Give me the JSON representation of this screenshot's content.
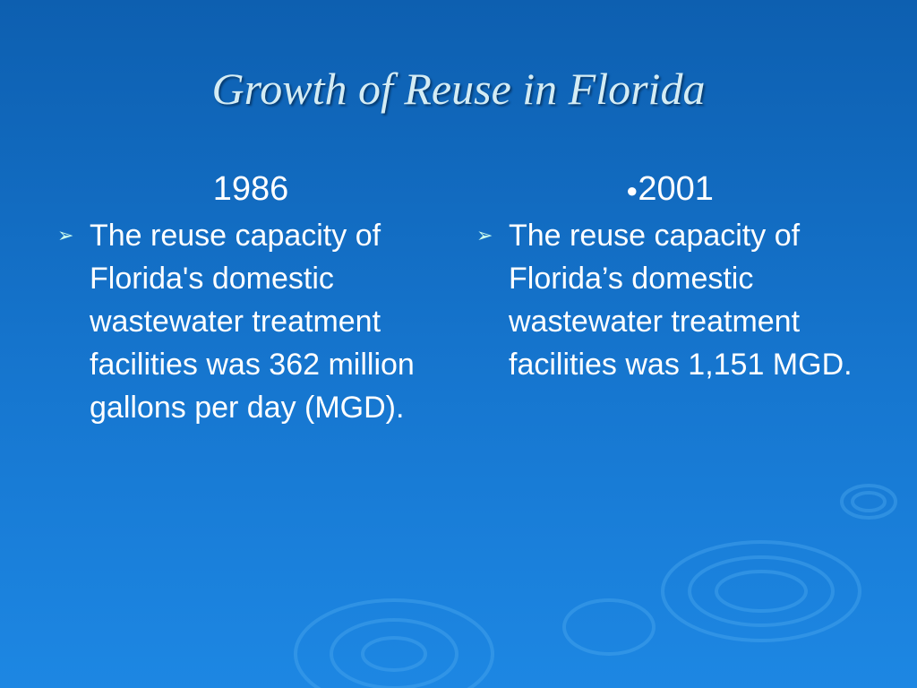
{
  "title": "Growth of Reuse in Florida",
  "columns": [
    {
      "heading": "1986",
      "bullet": "The reuse capacity of Florida's domestic wastewater treatment facilities was 362 million gallons per day (MGD)."
    },
    {
      "heading": "2001",
      "bullet": "The reuse capacity of Florida’s domestic wastewater treatment facilities was 1,151 MGD."
    }
  ]
}
